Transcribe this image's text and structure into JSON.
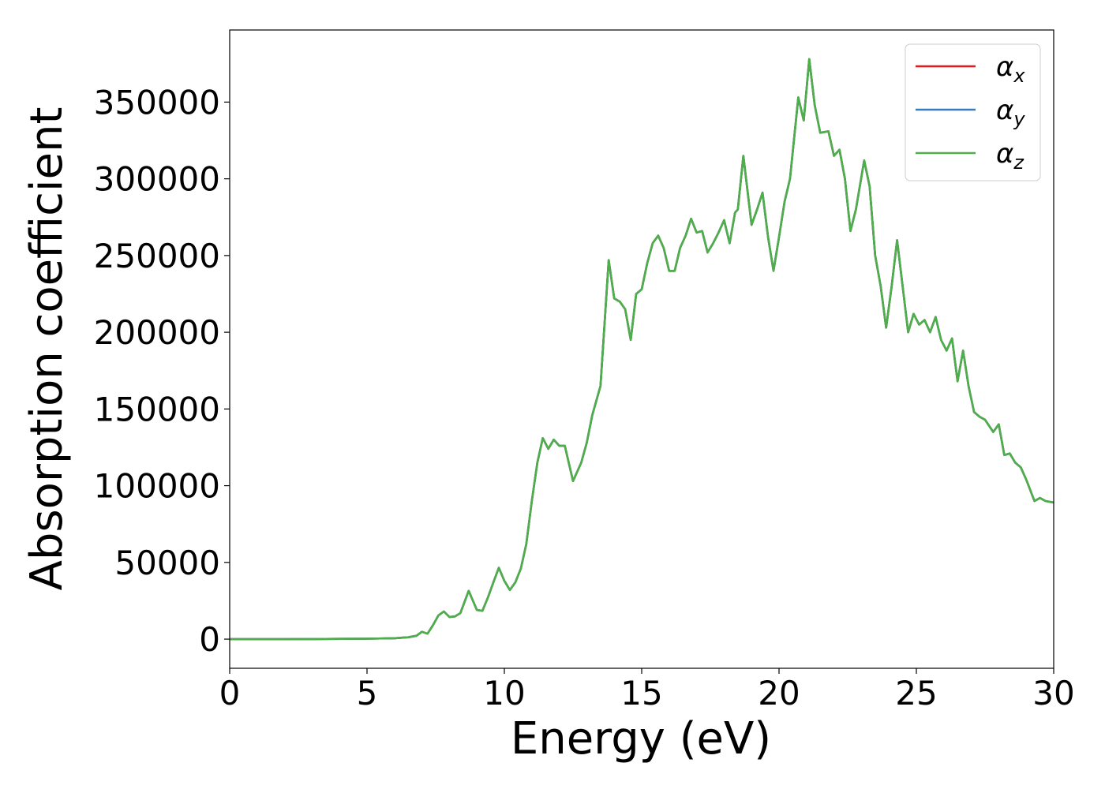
{
  "chart_data": {
    "type": "line",
    "title": "",
    "xlabel": "Energy (eV)",
    "ylabel": "Absorption coefficient",
    "xlim": [
      0,
      30
    ],
    "ylim": [
      -19000,
      397000
    ],
    "xticks": [
      0,
      5,
      10,
      15,
      20,
      25,
      30
    ],
    "yticks": [
      0,
      50000,
      100000,
      150000,
      200000,
      250000,
      300000,
      350000
    ],
    "grid": false,
    "legend_position": "top-right",
    "legend": [
      {
        "label": "α",
        "sub": "x",
        "color": "#e41a1c"
      },
      {
        "label": "α",
        "sub": "y",
        "color": "#377eb8"
      },
      {
        "label": "α",
        "sub": "z",
        "color": "#4daf4a"
      }
    ],
    "x": [
      0,
      1,
      2,
      3,
      4,
      5,
      6,
      6.5,
      6.8,
      7.0,
      7.2,
      7.4,
      7.6,
      7.8,
      8.0,
      8.2,
      8.4,
      8.7,
      9.0,
      9.2,
      9.4,
      9.6,
      9.8,
      10.0,
      10.2,
      10.4,
      10.6,
      10.8,
      11.0,
      11.2,
      11.4,
      11.6,
      11.8,
      12.0,
      12.2,
      12.5,
      12.8,
      13.0,
      13.2,
      13.5,
      13.8,
      14.0,
      14.2,
      14.4,
      14.6,
      14.8,
      15.0,
      15.2,
      15.4,
      15.6,
      15.8,
      16.0,
      16.2,
      16.4,
      16.6,
      16.8,
      17.0,
      17.2,
      17.4,
      17.6,
      17.8,
      18.0,
      18.2,
      18.4,
      18.5,
      18.7,
      19.0,
      19.2,
      19.4,
      19.6,
      19.8,
      20.0,
      20.2,
      20.4,
      20.7,
      20.9,
      21.1,
      21.3,
      21.5,
      21.8,
      22.0,
      22.2,
      22.4,
      22.6,
      22.8,
      23.1,
      23.3,
      23.5,
      23.7,
      23.9,
      24.1,
      24.3,
      24.5,
      24.7,
      24.9,
      25.1,
      25.3,
      25.5,
      25.7,
      25.9,
      26.1,
      26.3,
      26.5,
      26.7,
      26.9,
      27.1,
      27.3,
      27.5,
      27.8,
      28.0,
      28.2,
      28.4,
      28.6,
      28.8,
      29.0,
      29.3,
      29.5,
      29.7,
      30.0
    ],
    "series": [
      {
        "name": "α_x",
        "color": "#e41a1c",
        "values": [
          0,
          0,
          0,
          100,
          200,
          300,
          600,
          1200,
          2200,
          4800,
          3500,
          9000,
          15500,
          18000,
          14500,
          14800,
          17000,
          31500,
          19000,
          18500,
          27000,
          37000,
          46500,
          38000,
          32000,
          37000,
          46000,
          62000,
          90000,
          115000,
          131000,
          124000,
          130000,
          126000,
          126000,
          103000,
          115000,
          128000,
          146000,
          165000,
          247000,
          222000,
          220000,
          215000,
          195000,
          225000,
          228000,
          245000,
          258000,
          263000,
          255000,
          240000,
          240000,
          255000,
          263000,
          274000,
          265000,
          266000,
          252000,
          258000,
          265000,
          273000,
          258000,
          278000,
          280000,
          315000,
          270000,
          280000,
          291000,
          262000,
          240000,
          262000,
          285000,
          300000,
          353000,
          338000,
          378000,
          348000,
          330000,
          331000,
          315000,
          319000,
          300000,
          266000,
          280000,
          312000,
          295000,
          250000,
          230000,
          203000,
          230000,
          260000,
          230000,
          200000,
          212000,
          205000,
          208000,
          200000,
          210000,
          195000,
          188000,
          196000,
          168000,
          188000,
          165000,
          148000,
          145000,
          143000,
          135000,
          140000,
          120000,
          121000,
          115000,
          112000,
          104000,
          90000,
          92000,
          90000,
          89000
        ]
      },
      {
        "name": "α_y",
        "color": "#377eb8",
        "values": [
          0,
          0,
          0,
          100,
          200,
          300,
          600,
          1200,
          2200,
          4800,
          3500,
          9000,
          15500,
          18000,
          14500,
          14800,
          17000,
          31500,
          19000,
          18500,
          27000,
          37000,
          46500,
          38000,
          32000,
          37000,
          46000,
          62000,
          90000,
          115000,
          131000,
          124000,
          130000,
          126000,
          126000,
          103000,
          115000,
          128000,
          146000,
          165000,
          247000,
          222000,
          220000,
          215000,
          195000,
          225000,
          228000,
          245000,
          258000,
          263000,
          255000,
          240000,
          240000,
          255000,
          263000,
          274000,
          265000,
          266000,
          252000,
          258000,
          265000,
          273000,
          258000,
          278000,
          280000,
          315000,
          270000,
          280000,
          291000,
          262000,
          240000,
          262000,
          285000,
          300000,
          353000,
          338000,
          378000,
          348000,
          330000,
          331000,
          315000,
          319000,
          300000,
          266000,
          280000,
          312000,
          295000,
          250000,
          230000,
          203000,
          230000,
          260000,
          230000,
          200000,
          212000,
          205000,
          208000,
          200000,
          210000,
          195000,
          188000,
          196000,
          168000,
          188000,
          165000,
          148000,
          145000,
          143000,
          135000,
          140000,
          120000,
          121000,
          115000,
          112000,
          104000,
          90000,
          92000,
          90000,
          89000
        ]
      },
      {
        "name": "α_z",
        "color": "#4daf4a",
        "values": [
          0,
          0,
          0,
          100,
          200,
          300,
          600,
          1200,
          2200,
          4800,
          3500,
          9000,
          15500,
          18000,
          14500,
          14800,
          17000,
          31500,
          19000,
          18500,
          27000,
          37000,
          46500,
          38000,
          32000,
          37000,
          46000,
          62000,
          90000,
          115000,
          131000,
          124000,
          130000,
          126000,
          126000,
          103000,
          115000,
          128000,
          146000,
          165000,
          247000,
          222000,
          220000,
          215000,
          195000,
          225000,
          228000,
          245000,
          258000,
          263000,
          255000,
          240000,
          240000,
          255000,
          263000,
          274000,
          265000,
          266000,
          252000,
          258000,
          265000,
          273000,
          258000,
          278000,
          280000,
          315000,
          270000,
          280000,
          291000,
          262000,
          240000,
          262000,
          285000,
          300000,
          353000,
          338000,
          378000,
          348000,
          330000,
          331000,
          315000,
          319000,
          300000,
          266000,
          280000,
          312000,
          295000,
          250000,
          230000,
          203000,
          230000,
          260000,
          230000,
          200000,
          212000,
          205000,
          208000,
          200000,
          210000,
          195000,
          188000,
          196000,
          168000,
          188000,
          165000,
          148000,
          145000,
          143000,
          135000,
          140000,
          120000,
          121000,
          115000,
          112000,
          104000,
          90000,
          92000,
          90000,
          89000
        ]
      }
    ]
  }
}
